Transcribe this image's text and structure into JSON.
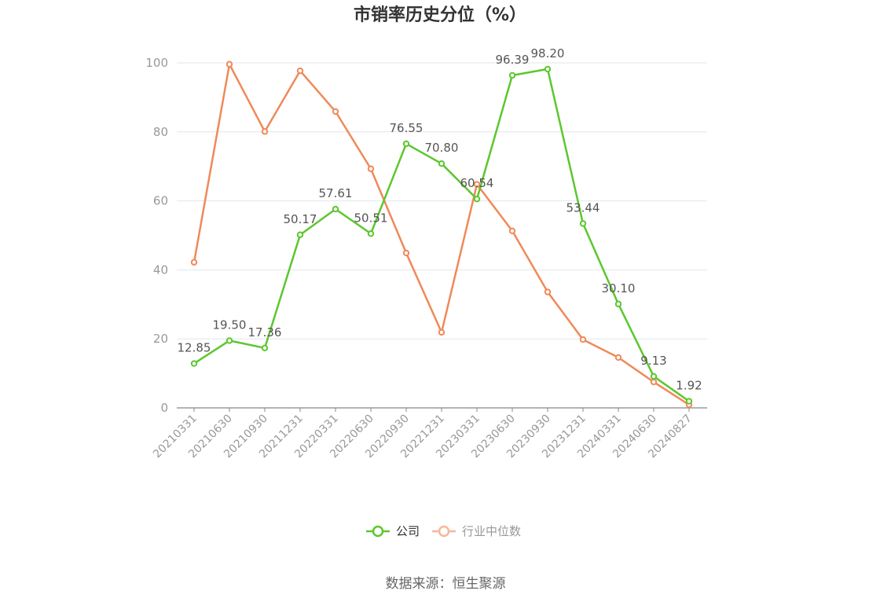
{
  "chart_data": {
    "type": "line",
    "title": "市销率历史分位（%）",
    "categories": [
      "20210331",
      "20210630",
      "20210930",
      "20211231",
      "20220331",
      "20220630",
      "20220930",
      "20221231",
      "20230331",
      "20230630",
      "20230930",
      "20231231",
      "20240331",
      "20240630",
      "20240827"
    ],
    "ylim": [
      0,
      100
    ],
    "yticks": [
      0,
      20,
      40,
      60,
      80,
      100
    ],
    "grid": true,
    "legend_position": "bottom",
    "series": [
      {
        "name": "公司",
        "color": "#5cc72e",
        "values": [
          12.85,
          19.5,
          17.36,
          50.17,
          57.61,
          50.51,
          76.55,
          70.8,
          60.54,
          96.39,
          98.2,
          53.44,
          30.1,
          9.13,
          1.92
        ],
        "labels": [
          "12.85",
          "19.50",
          "17.36",
          "50.17",
          "57.61",
          "50.51",
          "76.55",
          "70.80",
          "60.54",
          "96.39",
          "98.20",
          "53.44",
          "30.10",
          "9.13",
          "1.92"
        ]
      },
      {
        "name": "行业中位数",
        "color": "#f0895a",
        "values": [
          42.2,
          99.6,
          80.1,
          97.7,
          85.9,
          69.3,
          44.9,
          21.9,
          64.8,
          51.3,
          33.6,
          19.8,
          14.6,
          7.5,
          0.9
        ]
      }
    ]
  },
  "source": "数据来源：恒生聚源"
}
